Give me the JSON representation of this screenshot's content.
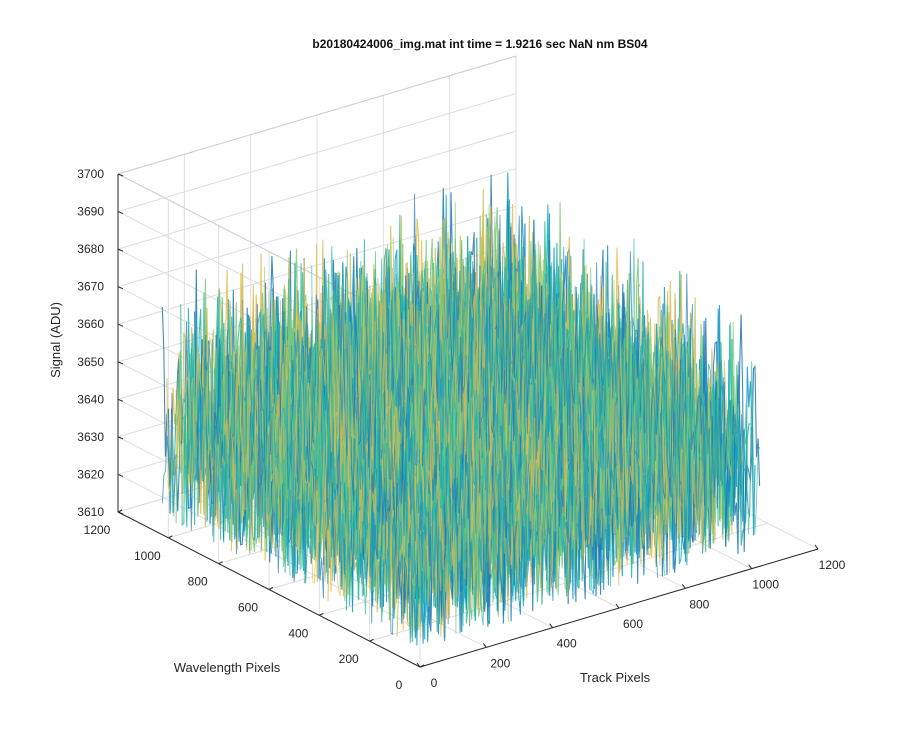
{
  "chart_data": {
    "type": "surface",
    "title": "b20180424006_img.mat int time = 1.9216 sec  NaN nm BS04",
    "xlabel": "Track Pixels",
    "ylabel": "Wavelength Pixels",
    "zlabel": "Signal (ADU)",
    "xlim": [
      0,
      1200
    ],
    "ylim": [
      0,
      1200
    ],
    "zlim": [
      3610,
      3700
    ],
    "xticks": [
      "0",
      "200",
      "400",
      "600",
      "800",
      "1000",
      "1200"
    ],
    "yticks": [
      "0",
      "200",
      "400",
      "600",
      "800",
      "1000",
      "1200"
    ],
    "zticks": [
      "3610",
      "3620",
      "3630",
      "3640",
      "3650",
      "3660",
      "3670",
      "3680",
      "3690",
      "3700"
    ],
    "data_extent": {
      "x": [
        0,
        1024
      ],
      "y": [
        0,
        1024
      ]
    },
    "signal_mean": 3640,
    "signal_range": [
      3615,
      3695
    ],
    "grid": true,
    "colors": [
      "#1f77b4",
      "#0f97c9",
      "#1bb3b2",
      "#39c096",
      "#7cc97a",
      "#c9c15e",
      "#e8ba4b"
    ]
  }
}
